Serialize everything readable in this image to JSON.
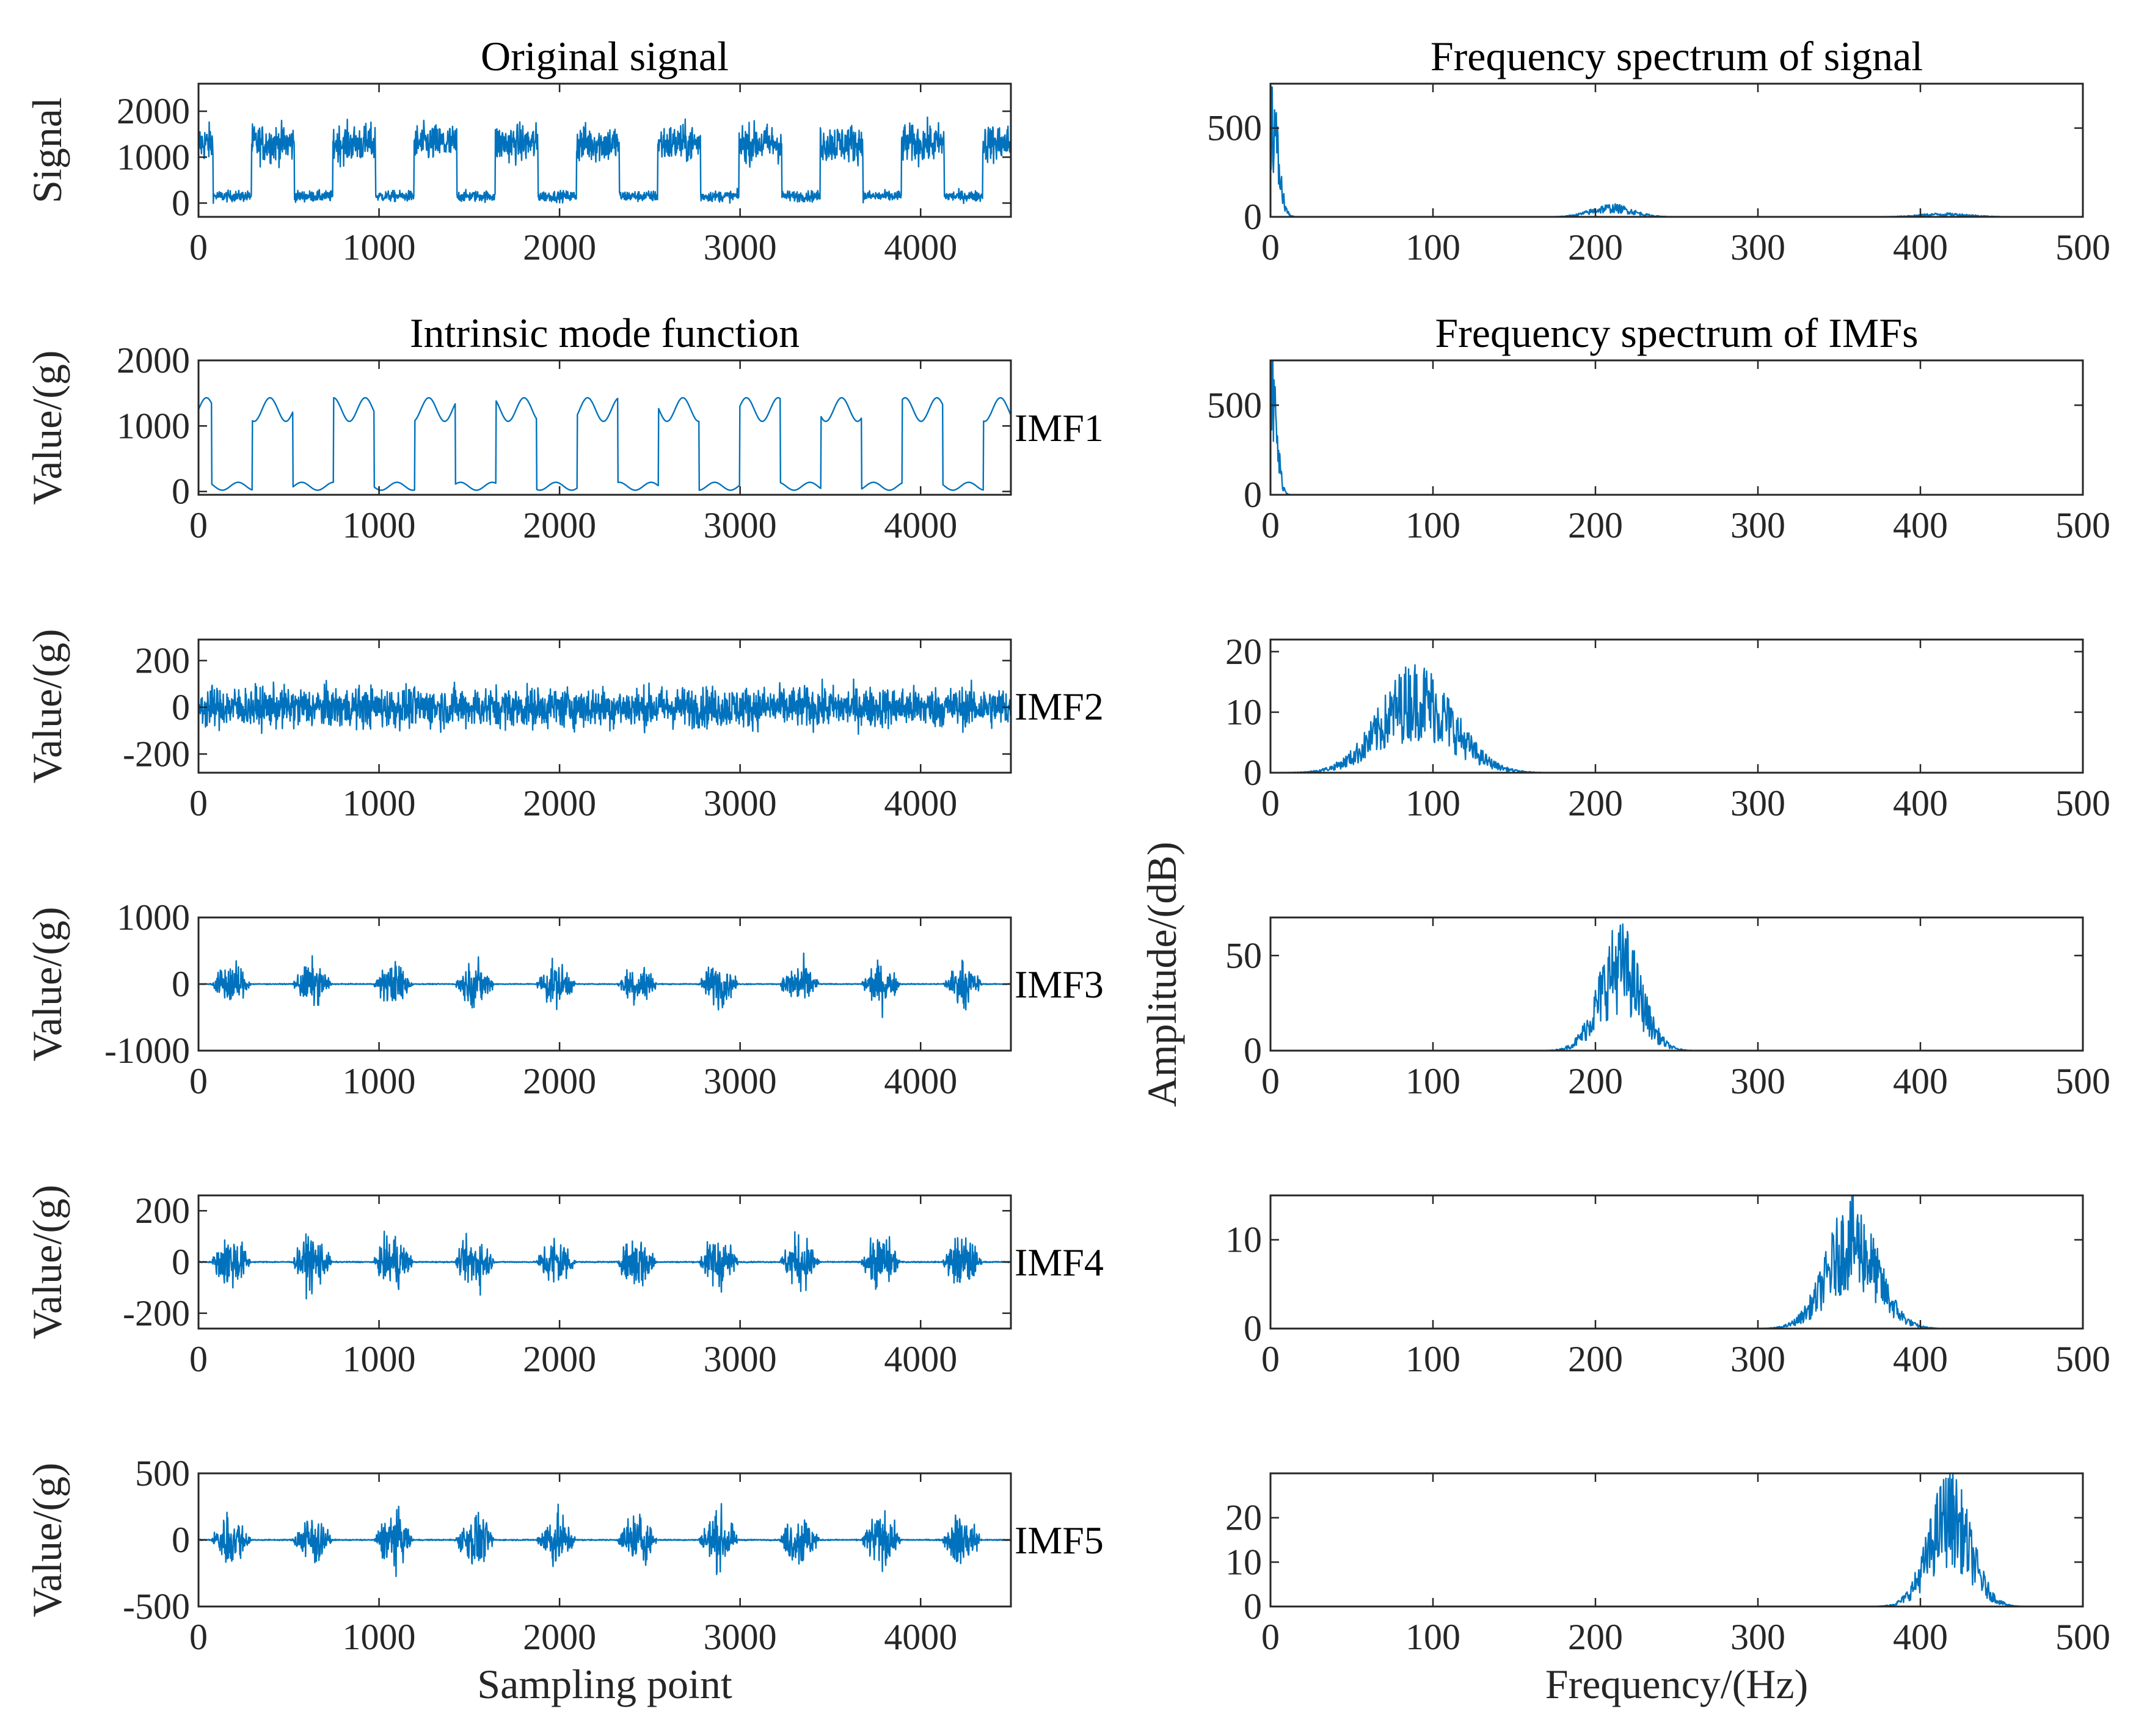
{
  "chart_data": [
    {
      "id": "sig",
      "type": "line",
      "title": "Original signal",
      "ylabel": "Signal",
      "xlim": [
        0,
        4500
      ],
      "ylim": [
        -300,
        2600
      ],
      "xticks": [
        0,
        1000,
        2000,
        3000,
        4000
      ],
      "yticks": [
        0,
        1000,
        2000
      ],
      "signal": "raw",
      "segments": 10,
      "color": "#0072bd"
    },
    {
      "id": "sig_fft",
      "type": "line",
      "title": "Frequency spectrum of signal",
      "xlim": [
        0,
        500
      ],
      "ylim": [
        0,
        750
      ],
      "xticks": [
        0,
        100,
        200,
        300,
        400,
        500
      ],
      "yticks": [
        0,
        500
      ],
      "spectrum": [
        {
          "center": 0,
          "width": 6,
          "amp": 720
        },
        {
          "center": 210,
          "width": 18,
          "amp": 60
        },
        {
          "center": 415,
          "width": 22,
          "amp": 18
        }
      ],
      "color": "#0072bd"
    },
    {
      "id": "imf1",
      "type": "line",
      "title": "Intrinsic mode function",
      "ylabel": "Value/(g)",
      "label": "IMF1",
      "xlim": [
        0,
        4500
      ],
      "ylim": [
        -50,
        2000
      ],
      "xticks": [
        0,
        1000,
        2000,
        3000,
        4000
      ],
      "yticks": [
        0,
        1000,
        2000
      ],
      "signal": "smooth",
      "segments": 10,
      "color": "#0072bd"
    },
    {
      "id": "imf1_fft",
      "type": "line",
      "title": "Frequency spectrum of IMFs",
      "xlim": [
        0,
        500
      ],
      "ylim": [
        0,
        750
      ],
      "xticks": [
        0,
        100,
        200,
        300,
        400,
        500
      ],
      "yticks": [
        0,
        500
      ],
      "spectrum": [
        {
          "center": 0,
          "width": 5,
          "amp": 720
        }
      ],
      "color": "#0072bd"
    },
    {
      "id": "imf2",
      "type": "line",
      "ylabel": "Value/(g)",
      "label": "IMF2",
      "xlim": [
        0,
        4500
      ],
      "ylim": [
        -280,
        290
      ],
      "xticks": [
        0,
        1000,
        2000,
        3000,
        4000
      ],
      "yticks": [
        -200,
        0,
        200
      ],
      "signal": "noise",
      "amp": 160,
      "color": "#0072bd"
    },
    {
      "id": "imf2_fft",
      "type": "line",
      "xlim": [
        0,
        500
      ],
      "ylim": [
        0,
        22
      ],
      "xticks": [
        0,
        100,
        200,
        300,
        400,
        500
      ],
      "yticks": [
        0,
        10,
        20
      ],
      "spectrum": [
        {
          "center": 90,
          "width": 32,
          "amp": 15
        }
      ],
      "color": "#0072bd"
    },
    {
      "id": "imf3",
      "type": "line",
      "ylabel": "Value/(g)",
      "label": "IMF3",
      "xlim": [
        0,
        4500
      ],
      "ylim": [
        -1000,
        1000
      ],
      "xticks": [
        0,
        1000,
        2000,
        3000,
        4000
      ],
      "yticks": [
        -1000,
        0,
        1000
      ],
      "signal": "bursts",
      "amp": 600,
      "segments": 10,
      "color": "#0072bd"
    },
    {
      "id": "imf3_fft",
      "type": "line",
      "ylabel": "Amplitude/(dB)",
      "xlim": [
        0,
        500
      ],
      "ylim": [
        0,
        70
      ],
      "xticks": [
        0,
        100,
        200,
        300,
        400,
        500
      ],
      "yticks": [
        0,
        50
      ],
      "spectrum": [
        {
          "center": 215,
          "width": 18,
          "amp": 55
        }
      ],
      "color": "#0072bd"
    },
    {
      "id": "imf4",
      "type": "line",
      "ylabel": "Value/(g)",
      "label": "IMF4",
      "xlim": [
        0,
        4500
      ],
      "ylim": [
        -260,
        260
      ],
      "xticks": [
        0,
        1000,
        2000,
        3000,
        4000
      ],
      "yticks": [
        -200,
        0,
        200
      ],
      "signal": "bursts",
      "amp": 200,
      "segments": 10,
      "color": "#0072bd"
    },
    {
      "id": "imf4_fft",
      "type": "line",
      "xlim": [
        0,
        500
      ],
      "ylim": [
        0,
        15
      ],
      "xticks": [
        0,
        100,
        200,
        300,
        400,
        500
      ],
      "yticks": [
        0,
        10
      ],
      "spectrum": [
        {
          "center": 358,
          "width": 22,
          "amp": 12
        }
      ],
      "color": "#0072bd"
    },
    {
      "id": "imf5",
      "type": "line",
      "ylabel": "Value/(g)",
      "label": "IMF5",
      "xlim": [
        0,
        4500
      ],
      "ylim": [
        -500,
        500
      ],
      "xticks": [
        0,
        1000,
        2000,
        3000,
        4000
      ],
      "yticks": [
        -500,
        0,
        500
      ],
      "signal": "bursts",
      "amp": 380,
      "segments": 10,
      "xlabel": "Sampling point",
      "color": "#0072bd"
    },
    {
      "id": "imf5_fft",
      "type": "line",
      "xlim": [
        0,
        500
      ],
      "ylim": [
        0,
        30
      ],
      "xticks": [
        0,
        100,
        200,
        300,
        400,
        500
      ],
      "yticks": [
        0,
        10,
        20
      ],
      "spectrum": [
        {
          "center": 418,
          "width": 18,
          "amp": 25
        }
      ],
      "xlabel": "Frequency/(Hz)",
      "color": "#0072bd"
    }
  ]
}
